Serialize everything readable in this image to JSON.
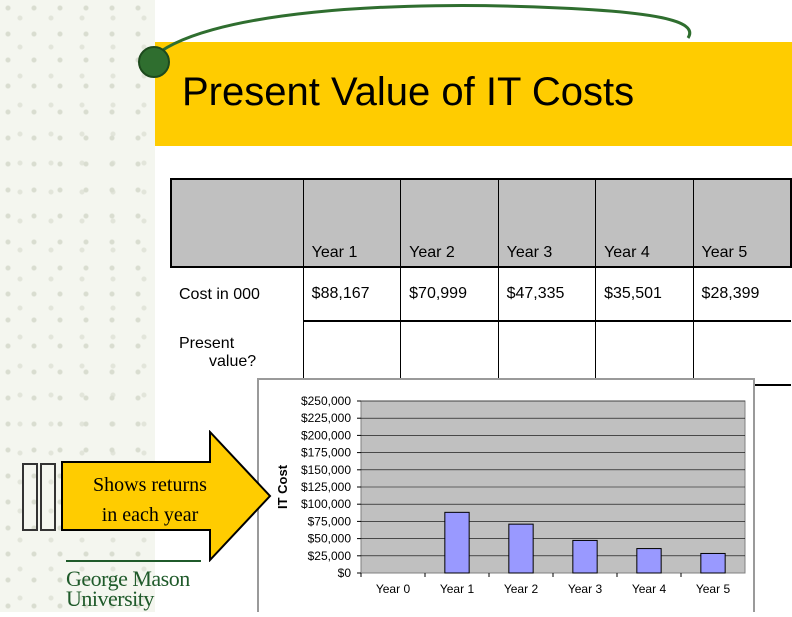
{
  "slide": {
    "title": "Present Value of IT Costs"
  },
  "table": {
    "years": [
      "Year 1",
      "Year 2",
      "Year 3",
      "Year 4",
      "Year 5"
    ],
    "row_cost_label": "Cost in 000",
    "costs": [
      "$88,167",
      "$70,999",
      "$47,335",
      "$35,501",
      "$28,399"
    ],
    "row_pv_label_line1": "Present",
    "row_pv_label_line2": "value?"
  },
  "callout": {
    "line1": "Shows returns",
    "line2": "in each year"
  },
  "logo": {
    "line1": "George Mason",
    "line2": "University"
  },
  "colors": {
    "title_band": "#ffcc00",
    "bar_fill": "#9999ff",
    "plot_bg": "#c0c0c0",
    "arrow_fill": "#ffcc00",
    "logo_green": "#1f5a2a"
  },
  "chart_data": {
    "type": "bar",
    "categories": [
      "Year 0",
      "Year 1",
      "Year 2",
      "Year 3",
      "Year 4",
      "Year 5"
    ],
    "values": [
      0,
      88167,
      70999,
      47335,
      35501,
      28399
    ],
    "ylabel": "IT Cost",
    "ylim": [
      0,
      250000
    ],
    "yticks": [
      "$0",
      "$25,000",
      "$50,000",
      "$75,000",
      "$100,000",
      "$125,000",
      "$150,000",
      "$175,000",
      "$200,000",
      "$225,000",
      "$250,000"
    ],
    "grid": true
  }
}
